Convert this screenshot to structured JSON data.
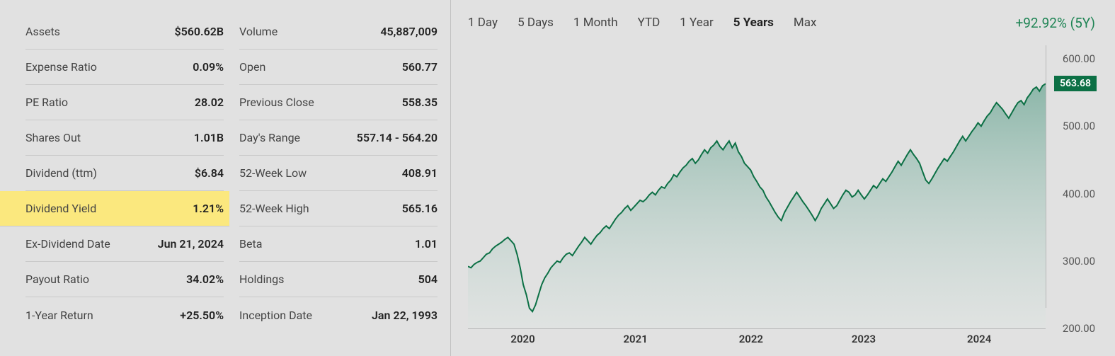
{
  "stats": {
    "col1": [
      {
        "id": "assets",
        "label": "Assets",
        "value": "$560.62B",
        "highlight": false
      },
      {
        "id": "expense-ratio",
        "label": "Expense Ratio",
        "value": "0.09%",
        "highlight": false
      },
      {
        "id": "pe-ratio",
        "label": "PE Ratio",
        "value": "28.02",
        "highlight": false
      },
      {
        "id": "shares-out",
        "label": "Shares Out",
        "value": "1.01B",
        "highlight": false
      },
      {
        "id": "dividend-ttm",
        "label": "Dividend (ttm)",
        "value": "$6.84",
        "highlight": false
      },
      {
        "id": "dividend-yield",
        "label": "Dividend Yield",
        "value": "1.21%",
        "highlight": true
      },
      {
        "id": "ex-div-date",
        "label": "Ex-Dividend Date",
        "value": "Jun 21, 2024",
        "highlight": false
      },
      {
        "id": "payout-ratio",
        "label": "Payout Ratio",
        "value": "34.02%",
        "highlight": false
      },
      {
        "id": "one-year-return",
        "label": "1-Year Return",
        "value": "+25.50%",
        "highlight": false
      }
    ],
    "col2": [
      {
        "id": "volume",
        "label": "Volume",
        "value": "45,887,009",
        "highlight": false
      },
      {
        "id": "open",
        "label": "Open",
        "value": "560.77",
        "highlight": false
      },
      {
        "id": "prev-close",
        "label": "Previous Close",
        "value": "558.35",
        "highlight": false
      },
      {
        "id": "days-range",
        "label": "Day's Range",
        "value": "557.14 - 564.20",
        "highlight": false
      },
      {
        "id": "wk52-low",
        "label": "52-Week Low",
        "value": "408.91",
        "highlight": false
      },
      {
        "id": "wk52-high",
        "label": "52-Week High",
        "value": "565.16",
        "highlight": false
      },
      {
        "id": "beta",
        "label": "Beta",
        "value": "1.01",
        "highlight": false
      },
      {
        "id": "holdings",
        "label": "Holdings",
        "value": "504",
        "highlight": false
      },
      {
        "id": "inception",
        "label": "Inception Date",
        "value": "Jan 22, 1993",
        "highlight": false
      }
    ]
  },
  "chart": {
    "type": "area",
    "time_tabs": [
      {
        "id": "1d",
        "label": "1 Day",
        "active": false
      },
      {
        "id": "5d",
        "label": "5 Days",
        "active": false
      },
      {
        "id": "1m",
        "label": "1 Month",
        "active": false
      },
      {
        "id": "ytd",
        "label": "YTD",
        "active": false
      },
      {
        "id": "1y",
        "label": "1 Year",
        "active": false
      },
      {
        "id": "5y",
        "label": "5 Years",
        "active": true
      },
      {
        "id": "max",
        "label": "Max",
        "active": false
      }
    ],
    "performance_return": "+92.92% (5Y)",
    "performance_color": "#1e8454",
    "line_color": "#0c7045",
    "line_width": 2,
    "fill_top_color": "#6fa896",
    "fill_bottom_color": "#dde5e2",
    "background_color": "#e1e1e1",
    "border_color": "#b8b8b8",
    "ymin": 200,
    "ymax": 620,
    "y_ticks": [
      200,
      300,
      400,
      500,
      600
    ],
    "y_tick_labels": [
      "200.00",
      "300.00",
      "400.00",
      "500.00",
      "600.00"
    ],
    "current_price": 563.68,
    "current_price_label": "563.68",
    "badge_bg": "#0c7045",
    "badge_text_color": "#ffffff",
    "x_tick_labels": [
      "2020",
      "2021",
      "2022",
      "2023",
      "2024"
    ],
    "x_tick_positions": [
      0.095,
      0.29,
      0.49,
      0.685,
      0.885
    ],
    "tick_fontsize": 15,
    "x_label_fontweight": 600,
    "series": [
      292,
      290,
      295,
      298,
      300,
      305,
      310,
      312,
      318,
      322,
      325,
      328,
      332,
      335,
      330,
      325,
      310,
      290,
      265,
      250,
      230,
      225,
      235,
      250,
      265,
      275,
      282,
      290,
      295,
      300,
      298,
      305,
      310,
      312,
      308,
      315,
      322,
      328,
      335,
      330,
      325,
      332,
      338,
      342,
      348,
      352,
      348,
      355,
      362,
      368,
      372,
      378,
      382,
      375,
      380,
      385,
      390,
      388,
      392,
      398,
      402,
      398,
      405,
      410,
      408,
      415,
      420,
      428,
      425,
      432,
      438,
      442,
      448,
      452,
      445,
      450,
      458,
      465,
      460,
      468,
      472,
      478,
      470,
      465,
      472,
      478,
      468,
      475,
      462,
      455,
      445,
      440,
      435,
      425,
      418,
      410,
      405,
      395,
      388,
      380,
      372,
      365,
      360,
      372,
      380,
      388,
      395,
      402,
      395,
      388,
      382,
      375,
      368,
      360,
      368,
      378,
      385,
      392,
      385,
      378,
      382,
      390,
      398,
      405,
      402,
      395,
      398,
      405,
      398,
      392,
      398,
      405,
      412,
      408,
      415,
      422,
      418,
      425,
      432,
      440,
      448,
      442,
      450,
      458,
      465,
      458,
      452,
      445,
      432,
      420,
      415,
      422,
      430,
      438,
      445,
      452,
      448,
      455,
      462,
      470,
      478,
      485,
      478,
      485,
      492,
      498,
      505,
      500,
      508,
      515,
      520,
      528,
      535,
      530,
      525,
      518,
      512,
      520,
      528,
      535,
      538,
      532,
      542,
      548,
      555,
      558,
      552,
      560,
      563
    ]
  }
}
